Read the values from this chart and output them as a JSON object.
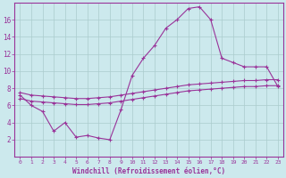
{
  "xlabel": "Windchill (Refroidissement éolien,°C)",
  "x_ticks": [
    0,
    1,
    2,
    3,
    4,
    5,
    6,
    7,
    8,
    9,
    10,
    11,
    12,
    13,
    14,
    15,
    16,
    17,
    18,
    19,
    20,
    21,
    22,
    23
  ],
  "ylim": [
    0,
    18
  ],
  "xlim": [
    -0.5,
    23.5
  ],
  "y_ticks": [
    2,
    4,
    6,
    8,
    10,
    12,
    14,
    16
  ],
  "bg_color": "#cce9ed",
  "line_color": "#993399",
  "grid_color": "#aacccc",
  "curve1_x": [
    0,
    1,
    2,
    3,
    4,
    5,
    6,
    7,
    8,
    9,
    10,
    11,
    12,
    13,
    14,
    15,
    16,
    17,
    18,
    19,
    20,
    21,
    22,
    23
  ],
  "curve1_y": [
    7.2,
    6.0,
    5.3,
    3.0,
    4.0,
    2.3,
    2.5,
    2.2,
    2.0,
    5.5,
    9.5,
    11.5,
    13.0,
    15.0,
    16.0,
    17.3,
    17.5,
    16.0,
    11.5,
    11.0,
    10.5,
    10.5,
    10.5,
    8.2
  ],
  "curve2_x": [
    0,
    1,
    2,
    3,
    4,
    5,
    6,
    7,
    8,
    9,
    10,
    11,
    12,
    13,
    14,
    15,
    16,
    17,
    18,
    19,
    20,
    21,
    22,
    23
  ],
  "curve2_y": [
    6.8,
    6.5,
    6.4,
    6.3,
    6.2,
    6.1,
    6.1,
    6.2,
    6.3,
    6.5,
    6.7,
    6.9,
    7.1,
    7.3,
    7.5,
    7.7,
    7.8,
    7.9,
    8.0,
    8.1,
    8.2,
    8.2,
    8.3,
    8.3
  ],
  "curve3_x": [
    0,
    1,
    2,
    3,
    4,
    5,
    6,
    7,
    8,
    9,
    10,
    11,
    12,
    13,
    14,
    15,
    16,
    17,
    18,
    19,
    20,
    21,
    22,
    23
  ],
  "curve3_y": [
    7.5,
    7.2,
    7.1,
    7.0,
    6.9,
    6.8,
    6.8,
    6.9,
    7.0,
    7.2,
    7.4,
    7.6,
    7.8,
    8.0,
    8.2,
    8.4,
    8.5,
    8.6,
    8.7,
    8.8,
    8.9,
    8.9,
    9.0,
    9.0
  ]
}
